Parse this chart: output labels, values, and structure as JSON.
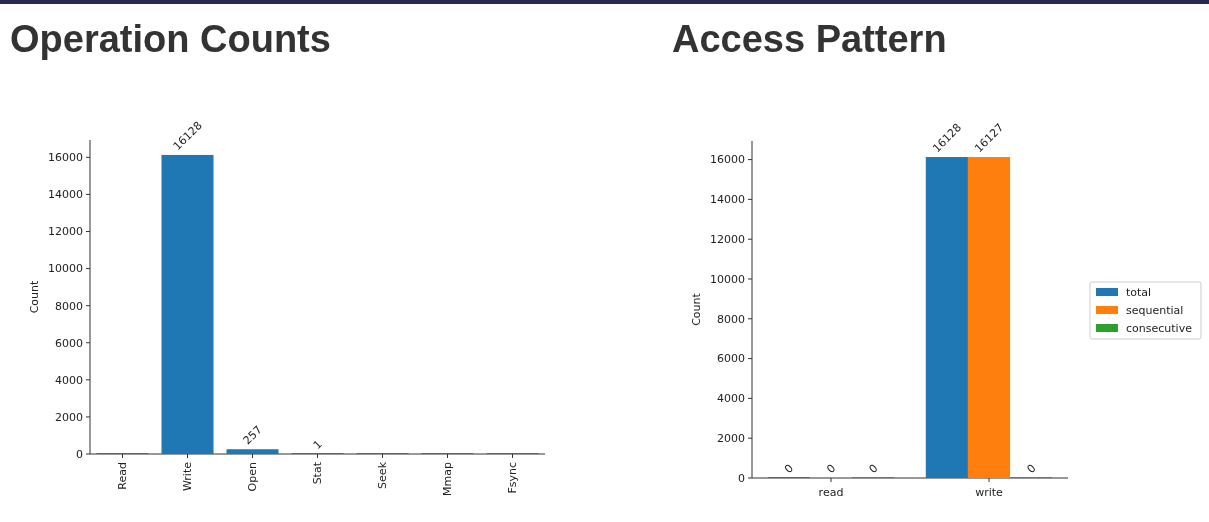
{
  "chart_data": [
    {
      "type": "bar",
      "title": "Operation Counts",
      "ylabel": "Count",
      "categories": [
        "Read",
        "Write",
        "Open",
        "Stat",
        "Seek",
        "Mmap",
        "Fsync"
      ],
      "values": [
        0,
        16128,
        257,
        1,
        0,
        0,
        0
      ],
      "value_labels": [
        null,
        "16128",
        "257",
        "1",
        null,
        null,
        null
      ],
      "color": "#1f77b4",
      "ylim": [
        0,
        16934
      ],
      "yticks": [
        0,
        2000,
        4000,
        6000,
        8000,
        10000,
        12000,
        14000,
        16000
      ],
      "grid": false,
      "legend": false
    },
    {
      "type": "bar",
      "title": "Access Pattern",
      "ylabel": "Count",
      "categories": [
        "read",
        "write"
      ],
      "series": [
        {
          "name": "total",
          "color": "#1f77b4",
          "values": [
            0,
            16128
          ]
        },
        {
          "name": "sequential",
          "color": "#ff7f0e",
          "values": [
            0,
            16127
          ]
        },
        {
          "name": "consecutive",
          "color": "#2ca02c",
          "values": [
            0,
            0
          ]
        }
      ],
      "ylim": [
        0,
        16934
      ],
      "yticks": [
        0,
        2000,
        4000,
        6000,
        8000,
        10000,
        12000,
        14000,
        16000
      ],
      "grid": false,
      "legend": "right",
      "data_labels": true
    }
  ]
}
